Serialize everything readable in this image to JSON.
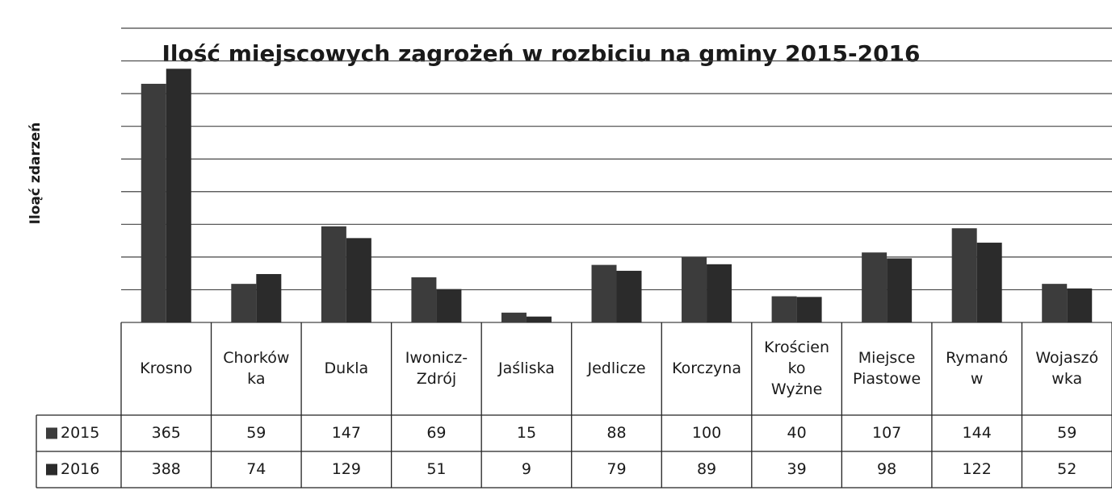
{
  "chart_data": {
    "type": "bar",
    "title": "Ilość miejscowych zagrożeń w rozbiciu na gminy 2015-2016",
    "y_label": "Iloąć zdarzeń",
    "categories": [
      [
        "Krosno"
      ],
      [
        "Chorków",
        "ka"
      ],
      [
        "Dukla"
      ],
      [
        "Iwonicz-",
        "Zdrój"
      ],
      [
        "Jaśliska"
      ],
      [
        "Jedlicze"
      ],
      [
        "Korczyna"
      ],
      [
        "Krościen",
        "ko",
        "Wyżne"
      ],
      [
        "Miejsce",
        "Piastowe"
      ],
      [
        "Rymanó",
        "w"
      ],
      [
        "Wojaszó",
        "wka"
      ]
    ],
    "series": [
      {
        "name": "2015",
        "color": "#3c3c3c",
        "values": [
          365,
          59,
          147,
          69,
          15,
          88,
          100,
          40,
          107,
          144,
          59
        ]
      },
      {
        "name": "2016",
        "color": "#2b2b2b",
        "values": [
          388,
          74,
          129,
          51,
          9,
          79,
          89,
          39,
          98,
          122,
          52
        ]
      }
    ],
    "ylim": [
      0,
      450
    ],
    "yticks": [
      0,
      50,
      100,
      150,
      200,
      250,
      300,
      350,
      400,
      450
    ],
    "grid": true,
    "data_table": true
  }
}
